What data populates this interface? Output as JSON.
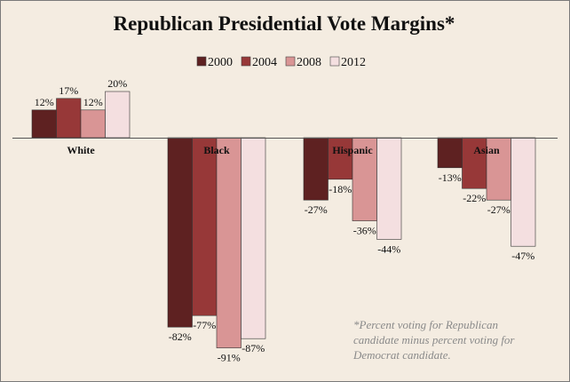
{
  "chart_data": {
    "type": "bar",
    "title": "Republican Presidential Vote Margins*",
    "categories": [
      "White",
      "Black",
      "Hispanic",
      "Asian"
    ],
    "series": [
      {
        "name": "2000",
        "color": "#5e2121",
        "values": [
          12,
          -82,
          -27,
          -13
        ]
      },
      {
        "name": "2004",
        "color": "#973838",
        "values": [
          17,
          -77,
          -18,
          -22
        ]
      },
      {
        "name": "2008",
        "color": "#d99595",
        "values": [
          12,
          -91,
          -36,
          -27
        ]
      },
      {
        "name": "2012",
        "color": "#f4dfe0",
        "values": [
          20,
          -87,
          -44,
          -47
        ]
      }
    ],
    "value_suffix": "%",
    "legend_position": "top",
    "ylim": [
      -100,
      25
    ],
    "grid": false,
    "footnote": [
      "*Percent voting for Republican",
      "candidate minus percent voting for",
      "Democrat candidate."
    ]
  }
}
